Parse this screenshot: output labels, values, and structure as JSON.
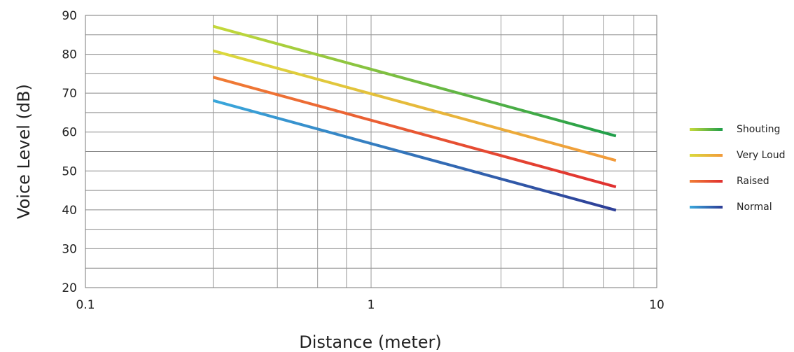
{
  "chart_data": {
    "type": "line",
    "xscale": "log",
    "xlim": [
      0.1,
      10
    ],
    "ylim": [
      20,
      90
    ],
    "xlabel": "Distance (meter)",
    "ylabel": "Voice Level (dB)",
    "xticks": [
      0.1,
      1,
      10
    ],
    "xtick_labels": [
      "0.1",
      "1",
      "10"
    ],
    "yticks": [
      20,
      30,
      40,
      50,
      60,
      70,
      80,
      90
    ],
    "ytick_labels": [
      "20",
      "30",
      "40",
      "50",
      "60",
      "70",
      "80",
      "90"
    ],
    "x_gridlines": [
      0.1,
      0.28,
      0.47,
      0.65,
      0.82,
      1,
      2.85,
      4.7,
      6.5,
      8.3,
      10
    ],
    "y_gridlines": [
      20,
      25,
      30,
      35,
      40,
      45,
      50,
      55,
      60,
      65,
      70,
      75,
      80,
      85,
      90
    ],
    "grid": true,
    "legend_position": "right",
    "series": [
      {
        "name": "Shouting",
        "x": [
          0.28,
          7.2
        ],
        "y": [
          87.2,
          59.0
        ],
        "gradient": [
          "#c6d93a",
          "#1f9e4a"
        ]
      },
      {
        "name": "Very Loud",
        "x": [
          0.28,
          7.2
        ],
        "y": [
          80.9,
          52.7
        ],
        "gradient": [
          "#dada3c",
          "#f29a3a"
        ]
      },
      {
        "name": "Raised",
        "x": [
          0.28,
          7.2
        ],
        "y": [
          74.1,
          45.9
        ],
        "gradient": [
          "#f07d35",
          "#e03030"
        ]
      },
      {
        "name": "Normal",
        "x": [
          0.28,
          7.2
        ],
        "y": [
          68.1,
          39.9
        ],
        "gradient": [
          "#3aa8dc",
          "#2d3d96"
        ]
      }
    ]
  }
}
